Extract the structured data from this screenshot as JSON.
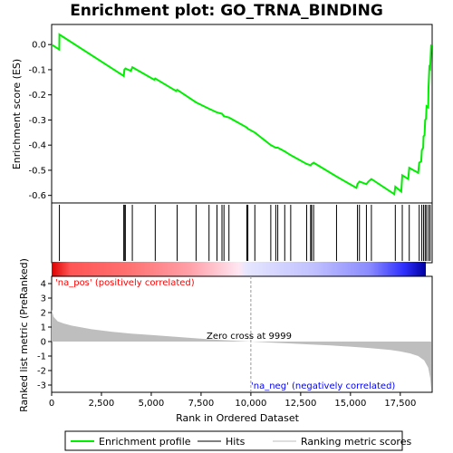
{
  "chart_data": {
    "type": "line",
    "title": "Enrichment plot: GO_TRNA_BINDING",
    "x_label": "Rank in Ordered Dataset",
    "es_panel": {
      "ylabel": "Enrichment score (ES)",
      "ylim": [
        -0.63,
        0.08
      ],
      "yticks": [
        0.0,
        -0.1,
        -0.2,
        -0.3,
        -0.4,
        -0.5,
        -0.6
      ],
      "ytick_labels": [
        "0.0",
        "-0.1",
        "-0.2",
        "-0.3",
        "-0.4",
        "-0.5",
        "-0.6"
      ],
      "points": [
        [
          0,
          0.0
        ],
        [
          380,
          -0.02
        ],
        [
          390,
          0.04
        ],
        [
          3620,
          -0.125
        ],
        [
          3650,
          -0.1
        ],
        [
          3700,
          -0.095
        ],
        [
          3980,
          -0.105
        ],
        [
          4050,
          -0.09
        ],
        [
          5150,
          -0.14
        ],
        [
          5200,
          -0.135
        ],
        [
          6250,
          -0.185
        ],
        [
          6300,
          -0.18
        ],
        [
          7250,
          -0.23
        ],
        [
          7900,
          -0.255
        ],
        [
          8300,
          -0.27
        ],
        [
          8550,
          -0.275
        ],
        [
          8650,
          -0.285
        ],
        [
          8900,
          -0.29
        ],
        [
          9800,
          -0.33
        ],
        [
          9850,
          -0.335
        ],
        [
          10200,
          -0.35
        ],
        [
          11000,
          -0.4
        ],
        [
          11250,
          -0.41
        ],
        [
          11350,
          -0.41
        ],
        [
          11700,
          -0.425
        ],
        [
          12000,
          -0.44
        ],
        [
          12800,
          -0.475
        ],
        [
          13000,
          -0.48
        ],
        [
          13050,
          -0.475
        ],
        [
          13150,
          -0.47
        ],
        [
          14300,
          -0.525
        ],
        [
          15300,
          -0.57
        ],
        [
          15350,
          -0.555
        ],
        [
          15450,
          -0.545
        ],
        [
          15800,
          -0.555
        ],
        [
          15900,
          -0.545
        ],
        [
          16050,
          -0.535
        ],
        [
          17200,
          -0.595
        ],
        [
          17250,
          -0.565
        ],
        [
          17550,
          -0.585
        ],
        [
          17600,
          -0.52
        ],
        [
          17900,
          -0.535
        ],
        [
          17950,
          -0.49
        ],
        [
          18400,
          -0.51
        ],
        [
          18450,
          -0.47
        ],
        [
          18550,
          -0.465
        ],
        [
          18580,
          -0.42
        ],
        [
          18650,
          -0.41
        ],
        [
          18670,
          -0.365
        ],
        [
          18720,
          -0.36
        ],
        [
          18750,
          -0.3
        ],
        [
          18790,
          -0.295
        ],
        [
          18820,
          -0.245
        ],
        [
          18900,
          -0.25
        ],
        [
          18920,
          -0.17
        ],
        [
          18960,
          -0.09
        ],
        [
          19000,
          -0.095
        ],
        [
          19050,
          0.0
        ]
      ],
      "line_color": "#00ee00"
    },
    "hits_panel": {
      "positions": [
        390,
        3620,
        3650,
        3700,
        4050,
        5200,
        6300,
        7250,
        7900,
        8300,
        8550,
        8650,
        8900,
        9800,
        9850,
        10200,
        11000,
        11250,
        11350,
        11700,
        12000,
        12800,
        13000,
        13050,
        13150,
        14300,
        15350,
        15450,
        15800,
        16050,
        17250,
        17600,
        17950,
        18450,
        18580,
        18670,
        18750,
        18820,
        18920,
        19000
      ]
    },
    "metric_panel": {
      "ylabel": "Ranked list metric (PreRanked)",
      "ylim": [
        -3.5,
        4.5
      ],
      "yticks": [
        4,
        3,
        2,
        1,
        0,
        -1,
        -2,
        -3
      ],
      "ytick_labels": [
        "4",
        "3",
        "2",
        "1",
        "0",
        "-1",
        "-2",
        "-3"
      ],
      "curve": [
        [
          0,
          2.2
        ],
        [
          100,
          1.7
        ],
        [
          300,
          1.4
        ],
        [
          600,
          1.25
        ],
        [
          1000,
          1.1
        ],
        [
          2000,
          0.85
        ],
        [
          3000,
          0.68
        ],
        [
          4000,
          0.55
        ],
        [
          5000,
          0.45
        ],
        [
          6000,
          0.35
        ],
        [
          7000,
          0.25
        ],
        [
          8000,
          0.15
        ],
        [
          9000,
          0.07
        ],
        [
          9999,
          0.0
        ],
        [
          11000,
          -0.07
        ],
        [
          12000,
          -0.13
        ],
        [
          13000,
          -0.2
        ],
        [
          14000,
          -0.27
        ],
        [
          15000,
          -0.35
        ],
        [
          16000,
          -0.45
        ],
        [
          17000,
          -0.58
        ],
        [
          17500,
          -0.68
        ],
        [
          18000,
          -0.82
        ],
        [
          18400,
          -1.0
        ],
        [
          18700,
          -1.3
        ],
        [
          18900,
          -1.8
        ],
        [
          19000,
          -2.5
        ],
        [
          19050,
          -3.3
        ]
      ],
      "fill_color": "#bebebe",
      "zero_cross_label": "Zero cross at 9999",
      "zero_cross": 9999,
      "pos_label": "'na_pos' (positively correlated)",
      "neg_label": "'na_neg' (negatively correlated)",
      "pos_color": "#ff0000",
      "neg_color": "#0000ff"
    },
    "x_axis": {
      "xlim": [
        0,
        19100
      ],
      "ticks": [
        0,
        2500,
        5000,
        7500,
        10000,
        12500,
        15000,
        17500
      ],
      "tick_labels": [
        "0",
        "2,500",
        "5,000",
        "7,500",
        "10,000",
        "12,500",
        "15,000",
        "17,500"
      ]
    },
    "legend": {
      "placement": "bottom",
      "items": [
        {
          "label": "Enrichment profile",
          "color": "#00ee00"
        },
        {
          "label": "Hits",
          "color": "#000000"
        },
        {
          "label": "Ranking metric scores",
          "color": "#bebebe"
        }
      ]
    }
  }
}
